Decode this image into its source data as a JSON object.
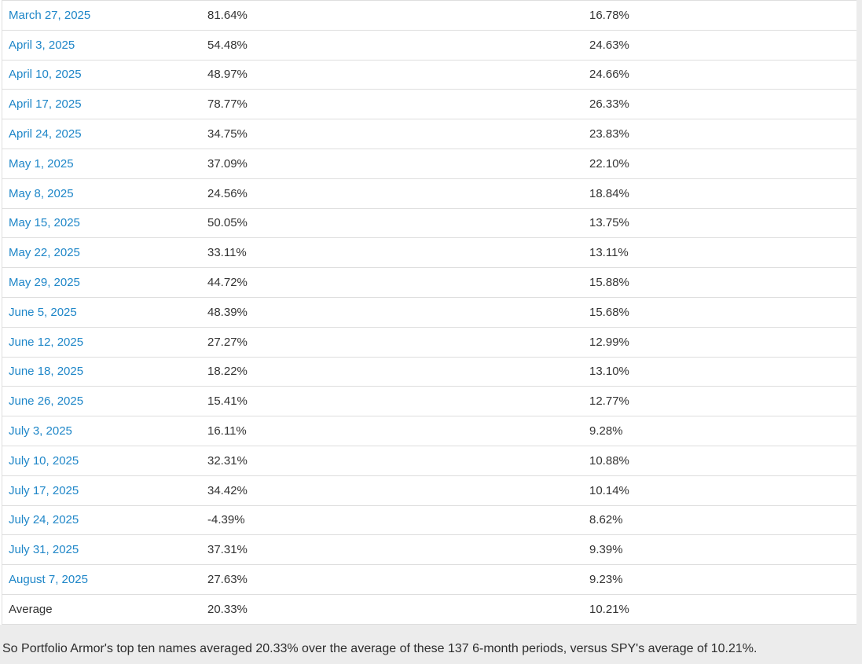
{
  "page": {
    "background_color": "#ececec",
    "table_background": "#ffffff",
    "divider_color": "#dedede",
    "link_color": "#1e86c8",
    "text_color": "#333333"
  },
  "table": {
    "columns": [
      "date",
      "portfolio_top_ten_return",
      "spy_return"
    ],
    "rows": [
      {
        "label": "March 27, 2025",
        "portfolio_return": "81.64%",
        "spy_return": "16.78%",
        "is_link": true
      },
      {
        "label": "April 3, 2025",
        "portfolio_return": "54.48%",
        "spy_return": "24.63%",
        "is_link": true
      },
      {
        "label": "April 10, 2025",
        "portfolio_return": "48.97%",
        "spy_return": "24.66%",
        "is_link": true
      },
      {
        "label": "April 17, 2025",
        "portfolio_return": "78.77%",
        "spy_return": "26.33%",
        "is_link": true
      },
      {
        "label": "April 24, 2025",
        "portfolio_return": "34.75%",
        "spy_return": "23.83%",
        "is_link": true
      },
      {
        "label": "May 1, 2025",
        "portfolio_return": "37.09%",
        "spy_return": "22.10%",
        "is_link": true
      },
      {
        "label": "May 8, 2025",
        "portfolio_return": "24.56%",
        "spy_return": "18.84%",
        "is_link": true
      },
      {
        "label": "May 15, 2025",
        "portfolio_return": "50.05%",
        "spy_return": "13.75%",
        "is_link": true
      },
      {
        "label": "May 22, 2025",
        "portfolio_return": "33.11%",
        "spy_return": "13.11%",
        "is_link": true
      },
      {
        "label": "May 29, 2025",
        "portfolio_return": "44.72%",
        "spy_return": "15.88%",
        "is_link": true
      },
      {
        "label": "June 5, 2025",
        "portfolio_return": "48.39%",
        "spy_return": "15.68%",
        "is_link": true
      },
      {
        "label": "June 12, 2025",
        "portfolio_return": "27.27%",
        "spy_return": "12.99%",
        "is_link": true
      },
      {
        "label": "June 18, 2025",
        "portfolio_return": "18.22%",
        "spy_return": "13.10%",
        "is_link": true
      },
      {
        "label": "June 26, 2025",
        "portfolio_return": "15.41%",
        "spy_return": "12.77%",
        "is_link": true
      },
      {
        "label": "July 3, 2025",
        "portfolio_return": "16.11%",
        "spy_return": "9.28%",
        "is_link": true
      },
      {
        "label": "July 10, 2025",
        "portfolio_return": "32.31%",
        "spy_return": "10.88%",
        "is_link": true
      },
      {
        "label": "July 17, 2025",
        "portfolio_return": "34.42%",
        "spy_return": "10.14%",
        "is_link": true
      },
      {
        "label": "July 24, 2025",
        "portfolio_return": "-4.39%",
        "spy_return": "8.62%",
        "is_link": true
      },
      {
        "label": "July 31, 2025",
        "portfolio_return": "37.31%",
        "spy_return": "9.39%",
        "is_link": true
      },
      {
        "label": "August 7, 2025",
        "portfolio_return": "27.63%",
        "spy_return": "9.23%",
        "is_link": true
      },
      {
        "label": "Average",
        "portfolio_return": "20.33%",
        "spy_return": "10.21%",
        "is_link": false
      }
    ]
  },
  "footer": {
    "text": "So Portfolio Armor's top ten names averaged 20.33% over the average of these 137 6-month periods, versus SPY's average of 10.21%."
  }
}
